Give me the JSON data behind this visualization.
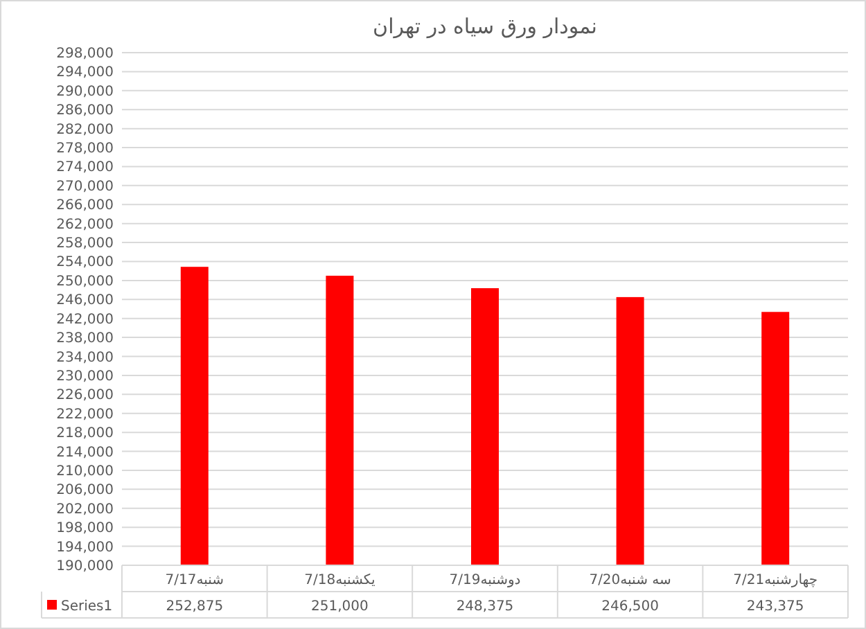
{
  "chart_data": {
    "type": "bar",
    "title": "نمودار ورق سیاه در تهران",
    "categories": [
      "شنبه7/17",
      "یکشنبه7/18",
      "دوشنبه7/19",
      "سه شنبه7/20",
      "چهارشنبه7/21"
    ],
    "series": [
      {
        "name": "Series1",
        "color": "#ff0000",
        "values": [
          252875,
          251000,
          248375,
          246500,
          243375
        ],
        "value_labels": [
          "252,875",
          "251,000",
          "248,375",
          "246,500",
          "243,375"
        ]
      }
    ],
    "ylim": [
      190000,
      298000
    ],
    "yticks": [
      {
        "value": 190000,
        "label": "190,000"
      },
      {
        "value": 194000,
        "label": "194,000"
      },
      {
        "value": 198000,
        "label": "198,000"
      },
      {
        "value": 202000,
        "label": "202,000"
      },
      {
        "value": 206000,
        "label": "206,000"
      },
      {
        "value": 210000,
        "label": "210,000"
      },
      {
        "value": 214000,
        "label": "214,000"
      },
      {
        "value": 218000,
        "label": "218,000"
      },
      {
        "value": 222000,
        "label": "222,000"
      },
      {
        "value": 226000,
        "label": "226,000"
      },
      {
        "value": 230000,
        "label": "230,000"
      },
      {
        "value": 234000,
        "label": "234,000"
      },
      {
        "value": 238000,
        "label": "238,000"
      },
      {
        "value": 242000,
        "label": "242,000"
      },
      {
        "value": 246000,
        "label": "246,000"
      },
      {
        "value": 250000,
        "label": "250,000"
      },
      {
        "value": 254000,
        "label": "254,000"
      },
      {
        "value": 258000,
        "label": "258,000"
      },
      {
        "value": 262000,
        "label": "262,000"
      },
      {
        "value": 266000,
        "label": "266,000"
      },
      {
        "value": 270000,
        "label": "270,000"
      },
      {
        "value": 274000,
        "label": "274,000"
      },
      {
        "value": 278000,
        "label": "278,000"
      },
      {
        "value": 282000,
        "label": "282,000"
      },
      {
        "value": 286000,
        "label": "286,000"
      },
      {
        "value": 290000,
        "label": "290,000"
      },
      {
        "value": 294000,
        "label": "294,000"
      },
      {
        "value": 298000,
        "label": "298,000"
      }
    ],
    "grid": "y",
    "legend": "bottom"
  }
}
